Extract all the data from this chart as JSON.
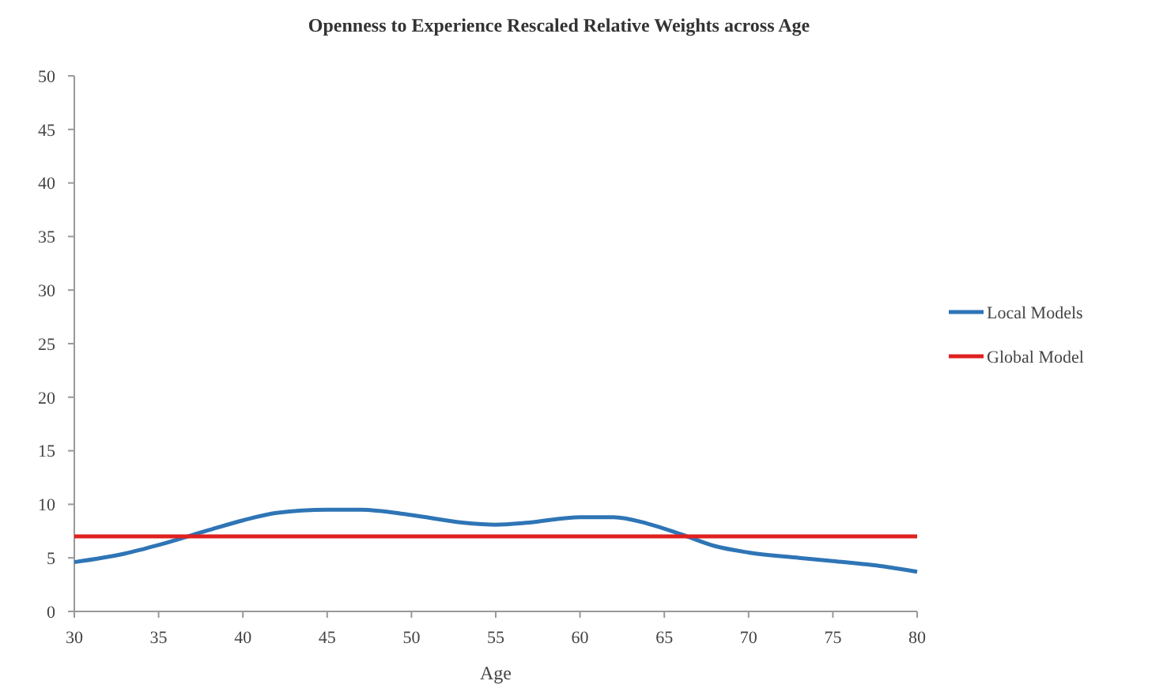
{
  "chart_data": {
    "type": "line",
    "title": "Openness to Experience Rescaled Relative Weights across Age",
    "xlabel": "Age",
    "xlim": [
      30,
      80
    ],
    "xticks": [
      30,
      35,
      40,
      45,
      50,
      55,
      60,
      65,
      70,
      75,
      80
    ],
    "ylim": [
      0,
      50
    ],
    "yticks": [
      0,
      5,
      10,
      15,
      20,
      25,
      30,
      35,
      40,
      45,
      50
    ],
    "legend": "right",
    "grid": false,
    "series": [
      {
        "name": "Local Models",
        "color": "#2e75b6",
        "x": [
          30,
          33,
          35,
          38,
          40,
          42,
          45,
          47,
          50,
          53,
          55,
          57,
          60,
          62,
          64,
          66,
          68,
          70,
          73,
          75,
          78,
          80
        ],
        "values": [
          4.6,
          5.4,
          6.2,
          7.6,
          8.5,
          9.2,
          9.5,
          9.5,
          9.0,
          8.3,
          8.1,
          8.3,
          8.8,
          8.8,
          8.2,
          7.2,
          6.1,
          5.5,
          5.0,
          4.7,
          4.2,
          3.7
        ]
      },
      {
        "name": "Global Model",
        "color": "#e02020",
        "x": [
          30,
          80
        ],
        "values": [
          7,
          7
        ]
      }
    ]
  }
}
